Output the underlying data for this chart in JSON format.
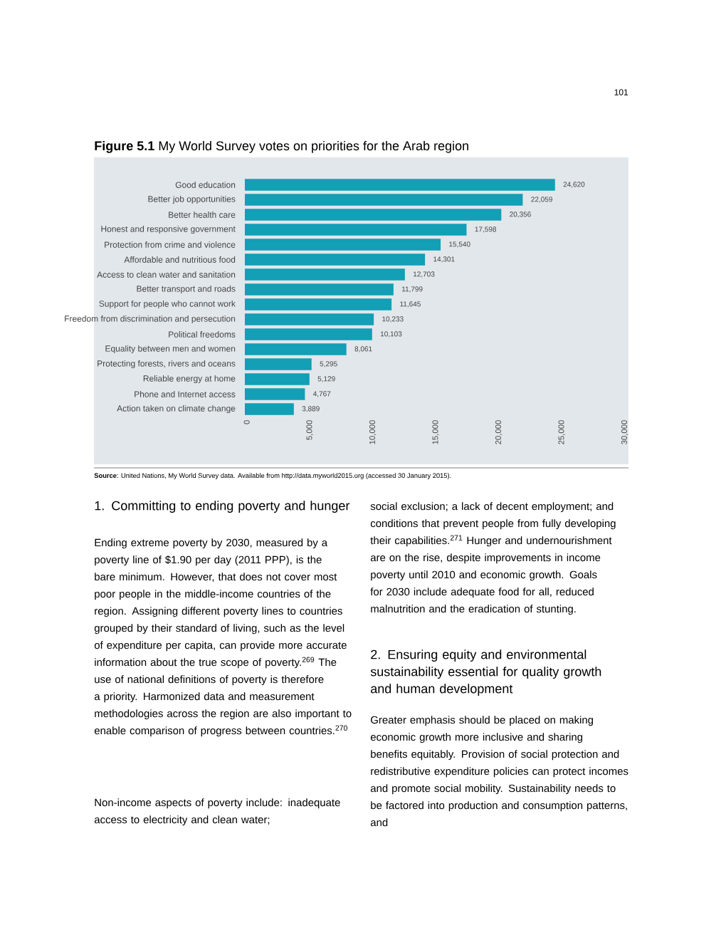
{
  "chart_data": {
    "type": "bar",
    "orientation": "horizontal",
    "title": "**Figure 5.1** My World Survey votes on priorities for the Arab region",
    "categories": [
      "Good education",
      "Better job opportunities",
      "Better health care",
      "Honest and responsive government",
      "Protection from crime and violence",
      "Affordable and nutritious food",
      "Access to clean water and sanitation",
      "Better transport and roads",
      "Support for people who cannot work",
      "Freedom from discrimination and persecution",
      "Political freedoms",
      "Equality between men and women",
      "Protecting forests, rivers and oceans",
      "Reliable energy at home",
      "Phone and Internet access",
      "Action taken on climate change"
    ],
    "values": [
      24620,
      22059,
      20356,
      17598,
      15540,
      14301,
      12703,
      11799,
      11645,
      10233,
      10103,
      8061,
      5295,
      5129,
      4767,
      3889
    ],
    "value_labels": [
      "24,620",
      "22,059",
      "20,356",
      "17,598",
      "15,540",
      "14,301",
      "12,703",
      "11,799",
      "11,645",
      "10,233",
      "10,103",
      "8,061",
      "5,295",
      "5,129",
      "4,767",
      "3,889"
    ],
    "color": "#139fb5",
    "xlim": [
      0,
      30000
    ],
    "xticks": [
      0,
      {
        "value": 5000,
        "label": "5,000"
      },
      {
        "value": 10000,
        "label": "10,000"
      },
      {
        "value": 15000,
        "label": "15,000"
      },
      {
        "value": 20000,
        "label": "20,000"
      },
      {
        "value": 25000,
        "label": "25,000"
      },
      {
        "value": 30000,
        "label": "30,000"
      }
    ],
    "grid": false,
    "annotations": [
      "101",
      "**Source**: United Nations, My World Survey data. Available from http://data.myworld2015.org (accessed 30 January 2015).",
      "1.  Committing to ending poverty and hunger",
      "Ending extreme poverty by 2030, measured by a poverty line of $1.90 per day (2011 PPP), is the bare minimum. However, that does not cover most poor people in the middle-income countries of the region. Assigning different poverty lines to countries grouped by their standard of living, such as the level of expenditure per capita, can provide more accurate information about the true scope of poverty.$^{269}$ The use of national definitions of poverty is therefore a priority. Harmonized data and measurement methodologies across the region are also important to enable comparison of progress between countries.$^{270}$",
      "Non-income aspects of poverty include: inadequate access to electricity and clean water;",
      "social exclusion; a lack of decent employment; and conditions that prevent people from fully developing their capabilities.$^{271}$ Hunger and undernourishment are on the rise, despite improvements in income poverty until 2010 and economic growth. Goals for 2030 include adequate food for all, reduced malnutrition and the eradication of stunting.",
      "2.  Ensuring equity and environmental sustainability essential for quality growth and human development",
      "Greater emphasis should be placed on making economic growth more inclusive and sharing benefits equitably. Provision of social protection and redistributive expenditure policies can protect incomes and promote social mobility. Sustainability needs to be factored into production and consumption patterns, and"
    ]
  }
}
